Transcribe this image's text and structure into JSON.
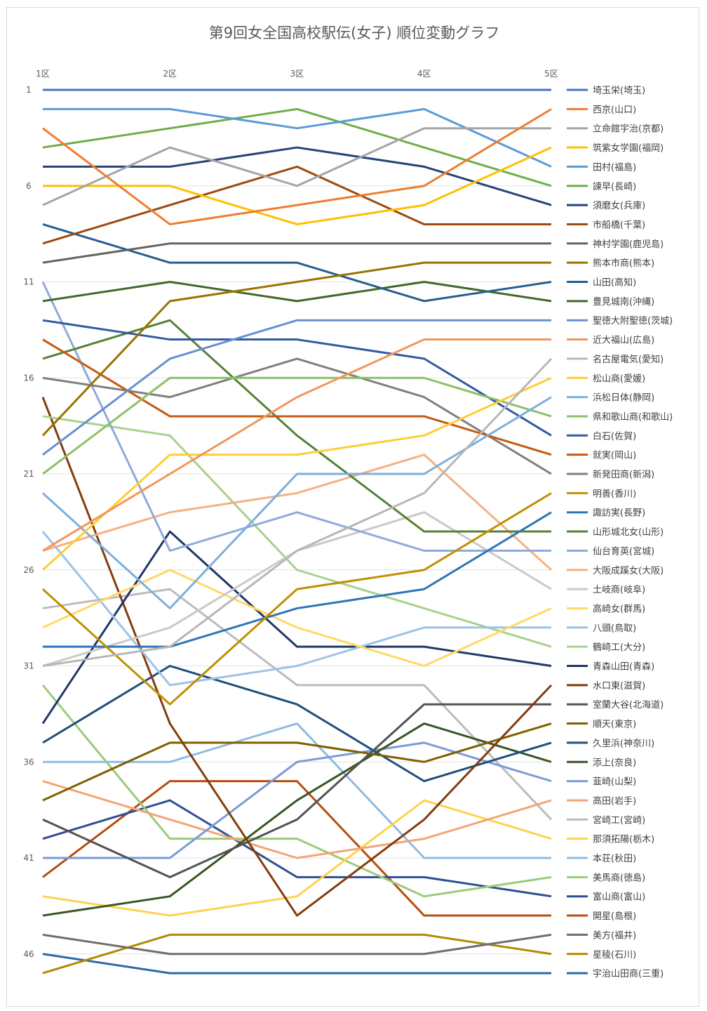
{
  "chart_data": {
    "type": "line",
    "title": "第9回女全国高校駅伝(女子) 順位変動グラフ",
    "categories": [
      "1区",
      "2区",
      "3区",
      "4区",
      "5区"
    ],
    "y_axis": {
      "reversed": true,
      "range": [
        1,
        47
      ],
      "tick_labels": [
        1,
        6,
        11,
        16,
        21,
        26,
        31,
        36,
        41,
        46
      ]
    },
    "grid": true,
    "legend_position": "right",
    "series": [
      {
        "name": "埼玉栄(埼玉)",
        "color": "#4472C4",
        "values": [
          1,
          1,
          1,
          1,
          1
        ]
      },
      {
        "name": "西京(山口)",
        "color": "#ED7D31",
        "values": [
          3,
          8,
          7,
          6,
          2
        ]
      },
      {
        "name": "立命館宇治(京都)",
        "color": "#A5A5A5",
        "values": [
          7,
          4,
          6,
          3,
          3
        ]
      },
      {
        "name": "筑紫女学園(福岡)",
        "color": "#FFC000",
        "values": [
          6,
          6,
          8,
          7,
          4
        ]
      },
      {
        "name": "田村(福島)",
        "color": "#5B9BD5",
        "values": [
          2,
          2,
          3,
          2,
          5
        ]
      },
      {
        "name": "諫早(長崎)",
        "color": "#70AD47",
        "values": [
          4,
          3,
          2,
          4,
          6
        ]
      },
      {
        "name": "須磨女(兵庫)",
        "color": "#264478",
        "values": [
          5,
          5,
          4,
          5,
          7
        ]
      },
      {
        "name": "市船橋(千葉)",
        "color": "#9E480E",
        "values": [
          9,
          7,
          5,
          8,
          8
        ]
      },
      {
        "name": "神村学園(鹿児島)",
        "color": "#636363",
        "values": [
          10,
          9,
          9,
          9,
          9
        ]
      },
      {
        "name": "熊本市商(熊本)",
        "color": "#997300",
        "values": [
          19,
          12,
          11,
          10,
          10
        ]
      },
      {
        "name": "山田(高知)",
        "color": "#255E91",
        "values": [
          8,
          10,
          10,
          12,
          11
        ]
      },
      {
        "name": "豊見城南(沖縄)",
        "color": "#43682B",
        "values": [
          12,
          11,
          12,
          11,
          12
        ]
      },
      {
        "name": "聖徳大附聖徳(茨城)",
        "color": "#698ED0",
        "values": [
          20,
          15,
          13,
          13,
          13
        ]
      },
      {
        "name": "近大福山(広島)",
        "color": "#F1975A",
        "values": [
          25,
          21,
          17,
          14,
          14
        ]
      },
      {
        "name": "名古屋電気(愛知)",
        "color": "#B7B7B7",
        "values": [
          31,
          30,
          25,
          22,
          15
        ]
      },
      {
        "name": "松山商(愛媛)",
        "color": "#FFCD33",
        "values": [
          26,
          20,
          20,
          19,
          16
        ]
      },
      {
        "name": "浜松日体(静岡)",
        "color": "#7CAFDD",
        "values": [
          22,
          28,
          21,
          21,
          17
        ]
      },
      {
        "name": "県和歌山商(和歌山)",
        "color": "#8CC168",
        "values": [
          21,
          16,
          16,
          16,
          18
        ]
      },
      {
        "name": "白石(佐賀)",
        "color": "#335AA1",
        "values": [
          13,
          14,
          14,
          15,
          19
        ]
      },
      {
        "name": "就実(岡山)",
        "color": "#C55A11",
        "values": [
          14,
          18,
          18,
          18,
          20
        ]
      },
      {
        "name": "新発田商(新潟)",
        "color": "#7F7F7F",
        "values": [
          16,
          17,
          15,
          17,
          21
        ]
      },
      {
        "name": "明善(香川)",
        "color": "#BF9000",
        "values": [
          27,
          33,
          27,
          26,
          22
        ]
      },
      {
        "name": "諏訪実(長野)",
        "color": "#2E75B6",
        "values": [
          30,
          30,
          28,
          27,
          23
        ]
      },
      {
        "name": "山形城北女(山形)",
        "color": "#548235",
        "values": [
          15,
          13,
          19,
          24,
          24
        ]
      },
      {
        "name": "仙台育英(宮城)",
        "color": "#8FAADC",
        "values": [
          11,
          25,
          23,
          25,
          25
        ]
      },
      {
        "name": "大阪成蹊女(大阪)",
        "color": "#F4B183",
        "values": [
          25,
          23,
          22,
          20,
          26
        ]
      },
      {
        "name": "土岐商(岐阜)",
        "color": "#C9C9C9",
        "values": [
          31,
          29,
          25,
          23,
          27
        ]
      },
      {
        "name": "高崎女(群馬)",
        "color": "#FFD966",
        "values": [
          29,
          26,
          29,
          31,
          28
        ]
      },
      {
        "name": "八頭(鳥取)",
        "color": "#9DC3E6",
        "values": [
          24,
          32,
          31,
          29,
          29
        ]
      },
      {
        "name": "鶴崎工(大分)",
        "color": "#A9D18E",
        "values": [
          18,
          19,
          26,
          28,
          30
        ]
      },
      {
        "name": "青森山田(青森)",
        "color": "#203864",
        "values": [
          34,
          24,
          30,
          30,
          31
        ]
      },
      {
        "name": "水口東(滋賀)",
        "color": "#843C0C",
        "values": [
          17,
          34,
          44,
          39,
          32
        ]
      },
      {
        "name": "室蘭大谷(北海道)",
        "color": "#525252",
        "values": [
          39,
          42,
          39,
          33,
          33
        ]
      },
      {
        "name": "順天(東京)",
        "color": "#7F6000",
        "values": [
          38,
          35,
          35,
          36,
          34
        ]
      },
      {
        "name": "久里浜(神奈川)",
        "color": "#1F4E79",
        "values": [
          35,
          31,
          33,
          37,
          35
        ]
      },
      {
        "name": "添上(奈良)",
        "color": "#375623",
        "values": [
          44,
          43,
          38,
          34,
          36
        ]
      },
      {
        "name": "韮崎(山梨)",
        "color": "#7B9BD8",
        "values": [
          41,
          41,
          36,
          35,
          37
        ]
      },
      {
        "name": "高田(岩手)",
        "color": "#F4A476",
        "values": [
          37,
          39,
          41,
          40,
          38
        ]
      },
      {
        "name": "宮崎工(宮崎)",
        "color": "#BCBCBC",
        "values": [
          28,
          27,
          32,
          32,
          39
        ]
      },
      {
        "name": "那須拓陽(栃木)",
        "color": "#FFD24D",
        "values": [
          43,
          44,
          43,
          38,
          40
        ]
      },
      {
        "name": "本荘(秋田)",
        "color": "#8FBBE3",
        "values": [
          36,
          36,
          34,
          41,
          41
        ]
      },
      {
        "name": "美馬商(徳島)",
        "color": "#9BCB7A",
        "values": [
          32,
          40,
          40,
          43,
          42
        ]
      },
      {
        "name": "富山商(富山)",
        "color": "#2F4F8F",
        "values": [
          40,
          38,
          42,
          42,
          43
        ]
      },
      {
        "name": "開星(島根)",
        "color": "#B84D0E",
        "values": [
          42,
          37,
          37,
          44,
          44
        ]
      },
      {
        "name": "美方(福井)",
        "color": "#6E6E6E",
        "values": [
          45,
          46,
          46,
          46,
          45
        ]
      },
      {
        "name": "星稜(石川)",
        "color": "#B08A00",
        "values": [
          47,
          45,
          45,
          45,
          46
        ]
      },
      {
        "name": "宇治山田商(三重)",
        "color": "#2A6BA8",
        "values": [
          46,
          47,
          47,
          47,
          47
        ]
      }
    ]
  }
}
